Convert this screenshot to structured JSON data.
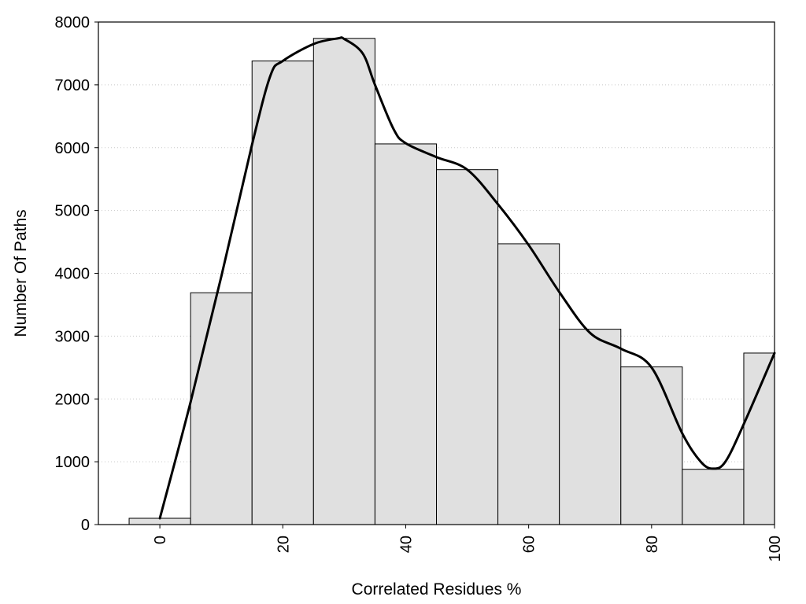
{
  "chart_data": {
    "type": "bar",
    "title": "",
    "xlabel": "Correlated Residues %",
    "ylabel": "Number Of Paths",
    "xlim": [
      -10,
      100
    ],
    "ylim": [
      0,
      8000
    ],
    "grid": true,
    "bar_color": "#e0e0e0",
    "bar_edge_color": "#000000",
    "line_color": "#000000",
    "x_ticks": [
      0,
      20,
      40,
      60,
      80,
      100
    ],
    "y_ticks": [
      0,
      1000,
      2000,
      3000,
      4000,
      5000,
      6000,
      7000,
      8000
    ],
    "bins": [
      {
        "x0": -5,
        "x1": 5,
        "value": 100
      },
      {
        "x0": 5,
        "x1": 15,
        "value": 3690
      },
      {
        "x0": 15,
        "x1": 25,
        "value": 7380
      },
      {
        "x0": 25,
        "x1": 35,
        "value": 7740
      },
      {
        "x0": 35,
        "x1": 45,
        "value": 6060
      },
      {
        "x0": 45,
        "x1": 55,
        "value": 5650
      },
      {
        "x0": 55,
        "x1": 65,
        "value": 4470
      },
      {
        "x0": 65,
        "x1": 75,
        "value": 3110
      },
      {
        "x0": 75,
        "x1": 85,
        "value": 2510
      },
      {
        "x0": 85,
        "x1": 95,
        "value": 880
      },
      {
        "x0": 95,
        "x1": 100,
        "value": 2730
      }
    ],
    "curve": {
      "x": [
        0,
        5,
        10,
        15,
        18,
        20,
        25,
        29,
        30,
        33,
        35,
        38,
        40,
        45,
        50,
        55,
        60,
        65,
        70,
        75,
        80,
        85,
        88,
        90,
        92,
        95,
        100
      ],
      "y": [
        100,
        1950,
        3950,
        6050,
        7150,
        7380,
        7650,
        7740,
        7730,
        7500,
        7000,
        6300,
        6070,
        5850,
        5650,
        5100,
        4450,
        3700,
        3050,
        2800,
        2500,
        1450,
        1000,
        890,
        1000,
        1600,
        2730
      ]
    }
  }
}
